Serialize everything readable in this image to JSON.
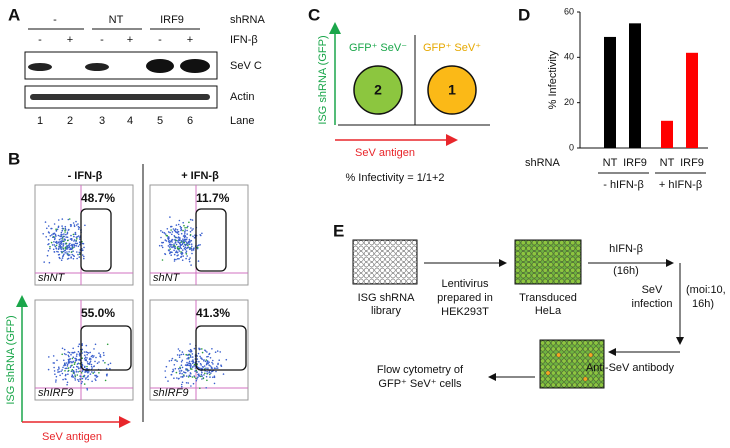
{
  "panel_a": {
    "label": "A",
    "groups": [
      "-",
      "NT",
      "IRF9"
    ],
    "shrna_label": "shRNA",
    "ifn_signs": [
      "-",
      "+",
      "-",
      "+",
      "-",
      "+"
    ],
    "ifn_label": "IFN-β",
    "blots": [
      "SeV C",
      "Actin"
    ],
    "lanes": [
      "1",
      "2",
      "3",
      "4",
      "5",
      "6"
    ],
    "lane_label": "Lane"
  },
  "panel_b": {
    "label": "B",
    "columns": [
      "- IFN-β",
      "+ IFN-β"
    ],
    "plots": [
      {
        "percent": "48.7%",
        "sample": "shNT"
      },
      {
        "percent": "11.7%",
        "sample": "shNT"
      },
      {
        "percent": "55.0%",
        "sample": "shIRF9"
      },
      {
        "percent": "41.3%",
        "sample": "shIRF9"
      }
    ],
    "y_axis_label": "ISG shRNA (GFP)",
    "x_axis_label": "SeV antigen"
  },
  "panel_c": {
    "label": "C",
    "y_axis_label": "ISG shRNA (GFP)",
    "x_axis_label": "SeV antigen",
    "quadrants": [
      {
        "label": "GFP⁺ SeV⁻",
        "number": "2"
      },
      {
        "label": "GFP⁺ SeV⁺",
        "number": "1"
      }
    ],
    "formula": "% Infectivity = 1/1+2"
  },
  "chart_data": {
    "type": "bar",
    "label": "D",
    "y_axis_label": "% Infectivity",
    "x_axis_label": "shRNA",
    "categories": [
      "NT",
      "IRF9",
      "NT",
      "IRF9"
    ],
    "values": [
      49,
      55,
      12,
      42
    ],
    "colors": [
      "#000000",
      "#000000",
      "#ff0000",
      "#ff0000"
    ],
    "groups": [
      "- hIFN-β",
      "+ hIFN-β"
    ],
    "ylim": [
      0,
      60
    ],
    "yticks": [
      0,
      20,
      40,
      60
    ]
  },
  "panel_e": {
    "label": "E",
    "library": [
      "ISG shRNA",
      "library"
    ],
    "lentivirus": [
      "Lentivirus",
      "prepared in",
      "HEK293T"
    ],
    "transduced": [
      "Transduced",
      "HeLa"
    ],
    "ifn": "hIFN-β",
    "ifn_time": "(16h)",
    "infection": [
      "SeV",
      "infection"
    ],
    "infection_cond": [
      "(moi:10,",
      "16h)"
    ],
    "antibody": "Anti-SeV antibody",
    "output": [
      "Flow cytometry of",
      "GFP⁺ SeV⁺ cells"
    ]
  }
}
